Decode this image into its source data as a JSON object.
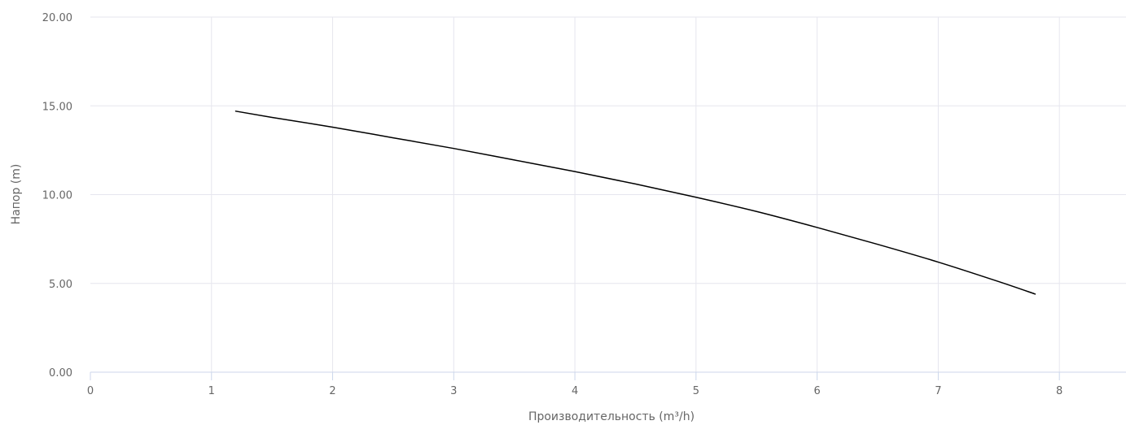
{
  "chart_data": {
    "type": "line",
    "title": "",
    "xlabel": "Производительность (m³/h)",
    "ylabel": "Напор (m)",
    "xlim": [
      0,
      8.55
    ],
    "ylim": [
      0,
      20
    ],
    "x_ticks": [
      "0",
      "1",
      "2",
      "3",
      "4",
      "5",
      "6",
      "7",
      "8"
    ],
    "y_ticks": [
      "0.00",
      "5.00",
      "10.00",
      "15.00",
      "20.00"
    ],
    "grid": true,
    "legend": "none",
    "series": [
      {
        "color": "#000000",
        "x": [
          1.2,
          1.5,
          2.0,
          2.5,
          3.0,
          3.5,
          4.0,
          4.5,
          5.0,
          5.5,
          6.0,
          6.5,
          7.0,
          7.5,
          7.8
        ],
        "y": [
          14.7,
          14.35,
          13.8,
          13.2,
          12.6,
          11.95,
          11.3,
          10.6,
          9.85,
          9.05,
          8.15,
          7.2,
          6.2,
          5.1,
          4.4
        ]
      }
    ]
  },
  "colors": {
    "grid": "#e6e6ee",
    "axis_line": "#ccd6eb",
    "label": "#666666",
    "series": "#000000"
  }
}
